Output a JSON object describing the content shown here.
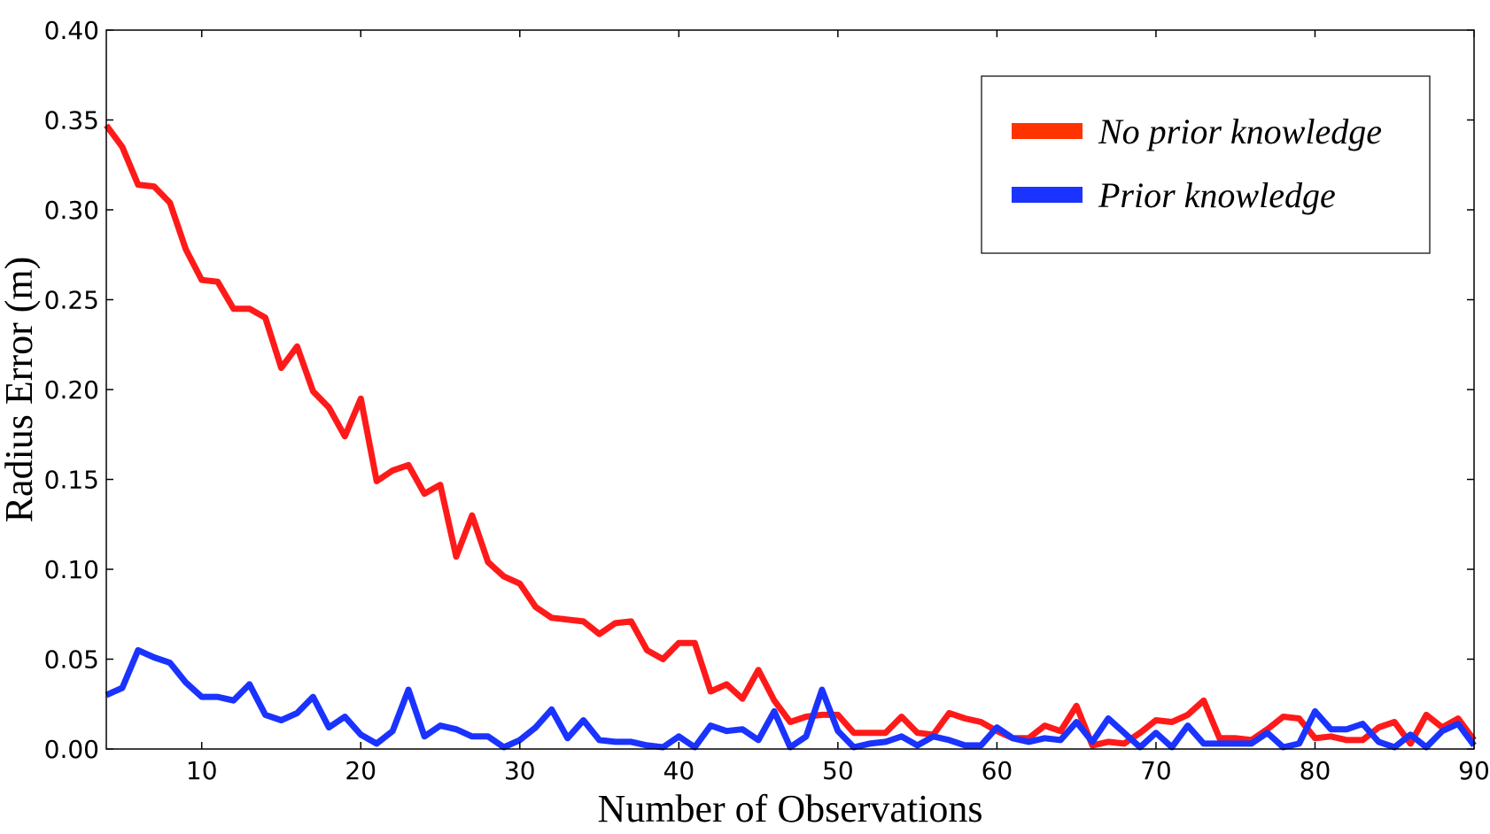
{
  "chart_data": {
    "type": "line",
    "title": "",
    "xlabel": "Number of Observations",
    "ylabel": "Radius Error (m)",
    "xlim": [
      4,
      90
    ],
    "ylim": [
      0.0,
      0.4
    ],
    "xticks": [
      10,
      20,
      30,
      40,
      50,
      60,
      70,
      80,
      90
    ],
    "xtick_labels": [
      "10",
      "20",
      "30",
      "40",
      "50",
      "60",
      "70",
      "80",
      "90"
    ],
    "yticks": [
      0.0,
      0.05,
      0.1,
      0.15,
      0.2,
      0.25,
      0.3,
      0.35,
      0.4
    ],
    "ytick_labels": [
      "0.00",
      "0.05",
      "0.10",
      "0.15",
      "0.20",
      "0.25",
      "0.30",
      "0.35",
      "0.40"
    ],
    "grid": false,
    "legend_position": "top-right",
    "x": [
      4,
      5,
      6,
      7,
      8,
      9,
      10,
      11,
      12,
      13,
      14,
      15,
      16,
      17,
      18,
      19,
      20,
      21,
      22,
      23,
      24,
      25,
      26,
      27,
      28,
      29,
      30,
      31,
      32,
      33,
      34,
      35,
      36,
      37,
      38,
      39,
      40,
      41,
      42,
      43,
      44,
      45,
      46,
      47,
      48,
      49,
      50,
      51,
      52,
      53,
      54,
      55,
      56,
      57,
      58,
      59,
      60,
      61,
      62,
      63,
      64,
      65,
      66,
      67,
      68,
      69,
      70,
      71,
      72,
      73,
      74,
      75,
      76,
      77,
      78,
      79,
      80,
      81,
      82,
      83,
      84,
      85,
      86,
      87,
      88,
      89,
      90
    ],
    "series": [
      {
        "name": "No prior knowledge",
        "color": "#ff1a1a",
        "legend_color": "#ff3300",
        "values": [
          0.347,
          0.335,
          0.314,
          0.313,
          0.304,
          0.278,
          0.261,
          0.26,
          0.245,
          0.245,
          0.24,
          0.212,
          0.224,
          0.199,
          0.19,
          0.174,
          0.195,
          0.149,
          0.155,
          0.158,
          0.142,
          0.147,
          0.107,
          0.13,
          0.104,
          0.096,
          0.092,
          0.079,
          0.073,
          0.072,
          0.071,
          0.064,
          0.07,
          0.071,
          0.055,
          0.05,
          0.059,
          0.059,
          0.032,
          0.036,
          0.028,
          0.044,
          0.027,
          0.015,
          0.018,
          0.019,
          0.019,
          0.009,
          0.009,
          0.009,
          0.018,
          0.009,
          0.008,
          0.02,
          0.017,
          0.015,
          0.01,
          0.006,
          0.006,
          0.013,
          0.01,
          0.024,
          0.002,
          0.004,
          0.003,
          0.009,
          0.016,
          0.015,
          0.019,
          0.027,
          0.006,
          0.006,
          0.005,
          0.011,
          0.018,
          0.017,
          0.006,
          0.007,
          0.005,
          0.005,
          0.012,
          0.015,
          0.003,
          0.019,
          0.012,
          0.017,
          0.005
        ]
      },
      {
        "name": "Prior knowledge",
        "color": "#1a33ff",
        "legend_color": "#1a33ff",
        "values": [
          0.03,
          0.034,
          0.055,
          0.051,
          0.048,
          0.037,
          0.029,
          0.029,
          0.027,
          0.036,
          0.019,
          0.016,
          0.02,
          0.029,
          0.012,
          0.018,
          0.008,
          0.003,
          0.01,
          0.033,
          0.007,
          0.013,
          0.011,
          0.007,
          0.007,
          0.001,
          0.005,
          0.012,
          0.022,
          0.006,
          0.016,
          0.005,
          0.004,
          0.004,
          0.002,
          0.001,
          0.007,
          0.001,
          0.013,
          0.01,
          0.011,
          0.005,
          0.021,
          0.001,
          0.007,
          0.033,
          0.01,
          0.001,
          0.003,
          0.004,
          0.007,
          0.002,
          0.007,
          0.005,
          0.002,
          0.002,
          0.012,
          0.006,
          0.004,
          0.006,
          0.005,
          0.015,
          0.004,
          0.017,
          0.009,
          0.001,
          0.009,
          0.001,
          0.013,
          0.003,
          0.003,
          0.003,
          0.003,
          0.009,
          0.001,
          0.003,
          0.021,
          0.011,
          0.011,
          0.014,
          0.004,
          0.001,
          0.008,
          0.001,
          0.01,
          0.014,
          0.002
        ]
      }
    ]
  }
}
